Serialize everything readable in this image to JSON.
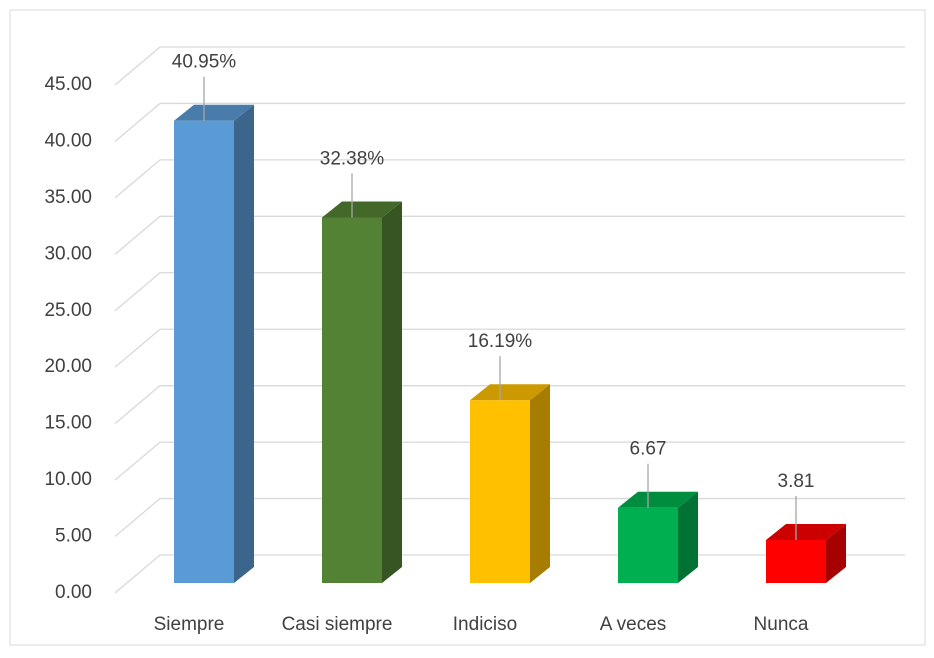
{
  "chart_data": {
    "type": "bar3d",
    "categories": [
      "Siempre",
      "Casi siempre",
      "Indiciso",
      "A veces",
      "Nunca"
    ],
    "values": [
      40.95,
      32.38,
      16.19,
      6.67,
      3.81
    ],
    "value_labels": [
      "40.95%",
      "32.38%",
      "16.19%",
      "6.67",
      "3.81"
    ],
    "colors": [
      "#5b9bd5",
      "#548235",
      "#ffc000",
      "#00b050",
      "#ff0000"
    ],
    "ylim": [
      0,
      45
    ],
    "yticks": [
      {
        "value": 0,
        "label": "0.00"
      },
      {
        "value": 5,
        "label": "5.00"
      },
      {
        "value": 10,
        "label": "10.00"
      },
      {
        "value": 15,
        "label": "15.00"
      },
      {
        "value": 20,
        "label": "20.00"
      },
      {
        "value": 25,
        "label": "25.00"
      },
      {
        "value": 30,
        "label": "30.00"
      },
      {
        "value": 35,
        "label": "35.00"
      },
      {
        "value": 40,
        "label": "40.00"
      },
      {
        "value": 45,
        "label": "45.00"
      }
    ],
    "grid": true
  }
}
